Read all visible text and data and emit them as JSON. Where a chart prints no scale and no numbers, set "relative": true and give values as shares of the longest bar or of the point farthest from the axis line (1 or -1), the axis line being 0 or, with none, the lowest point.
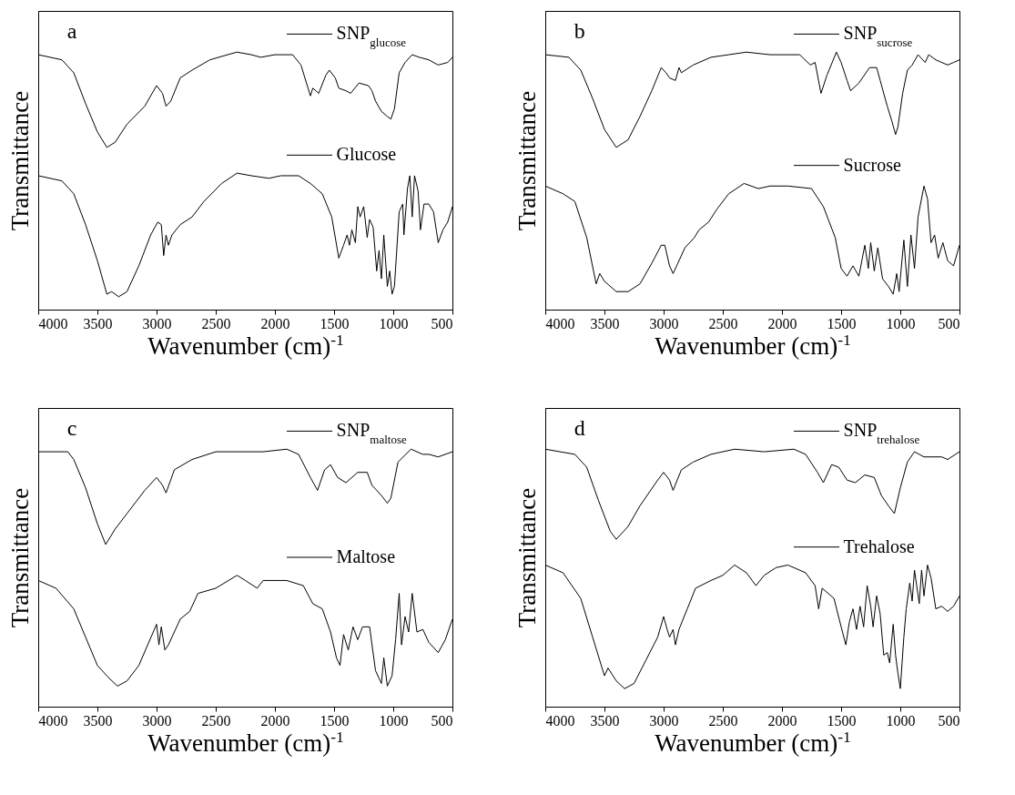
{
  "chart_data": [
    {
      "type": "line",
      "relative": true,
      "xlabel": "Wavenumber (cm)$^{-1}$",
      "ylabel": "Transmittance",
      "xlim": [
        4000,
        500
      ],
      "xticks": [
        4000,
        3500,
        3000,
        2500,
        2000,
        1500,
        1000,
        500
      ],
      "annotations": [
        "a"
      ],
      "legend": "top right",
      "series": [
        {
          "name": "SNP$_{glucose}$",
          "color": "#000000",
          "x": [
            4000,
            3800,
            3700,
            3600,
            3500,
            3420,
            3350,
            3250,
            3100,
            3000,
            2950,
            2920,
            2880,
            2800,
            2700,
            2550,
            2400,
            2320,
            2200,
            2120,
            2000,
            1850,
            1780,
            1720,
            1700,
            1680,
            1630,
            1570,
            1540,
            1490,
            1460,
            1400,
            1360,
            1290,
            1210,
            1180,
            1150,
            1100,
            1050,
            1020,
            990,
            950,
            900,
            840,
            780,
            700,
            620,
            540,
            500
          ],
          "values": [
            0.99,
            0.97,
            0.92,
            0.8,
            0.69,
            0.63,
            0.65,
            0.72,
            0.79,
            0.87,
            0.84,
            0.79,
            0.81,
            0.9,
            0.93,
            0.97,
            0.99,
            1,
            0.99,
            0.98,
            0.99,
            0.99,
            0.95,
            0.86,
            0.83,
            0.86,
            0.84,
            0.91,
            0.93,
            0.9,
            0.86,
            0.85,
            0.84,
            0.88,
            0.87,
            0.85,
            0.81,
            0.77,
            0.75,
            0.74,
            0.78,
            0.92,
            0.96,
            0.99,
            0.98,
            0.97,
            0.95,
            0.96,
            0.98
          ]
        },
        {
          "name": "Glucose",
          "color": "#000000",
          "x": [
            4000,
            3800,
            3700,
            3600,
            3500,
            3420,
            3380,
            3320,
            3250,
            3150,
            3050,
            2990,
            2960,
            2940,
            2920,
            2900,
            2870,
            2800,
            2700,
            2600,
            2450,
            2320,
            2200,
            2050,
            1950,
            1800,
            1700,
            1600,
            1520,
            1460,
            1420,
            1390,
            1370,
            1350,
            1320,
            1300,
            1280,
            1250,
            1220,
            1200,
            1170,
            1140,
            1120,
            1100,
            1080,
            1050,
            1030,
            1010,
            990,
            950,
            920,
            910,
            880,
            860,
            840,
            820,
            790,
            770,
            740,
            700,
            660,
            620,
            580,
            540,
            500
          ],
          "values": [
            0.52,
            0.5,
            0.45,
            0.33,
            0.19,
            0.06,
            0.07,
            0.05,
            0.07,
            0.17,
            0.29,
            0.34,
            0.33,
            0.21,
            0.29,
            0.25,
            0.29,
            0.33,
            0.36,
            0.42,
            0.49,
            0.53,
            0.52,
            0.51,
            0.52,
            0.52,
            0.49,
            0.45,
            0.36,
            0.2,
            0.25,
            0.29,
            0.25,
            0.31,
            0.26,
            0.4,
            0.36,
            0.4,
            0.28,
            0.35,
            0.32,
            0.15,
            0.23,
            0.12,
            0.29,
            0.09,
            0.15,
            0.06,
            0.09,
            0.38,
            0.41,
            0.29,
            0.47,
            0.52,
            0.36,
            0.52,
            0.46,
            0.31,
            0.41,
            0.41,
            0.38,
            0.26,
            0.31,
            0.34,
            0.4
          ]
        }
      ]
    },
    {
      "type": "line",
      "relative": true,
      "xlabel": "Wavenumber (cm)$^{-1}$",
      "ylabel": "Transmittance",
      "xlim": [
        4000,
        500
      ],
      "xticks": [
        4000,
        3500,
        3000,
        2500,
        2000,
        1500,
        1000,
        500
      ],
      "annotations": [
        "b"
      ],
      "legend": "top right",
      "series": [
        {
          "name": "SNP$_{sucrose}$",
          "color": "#000000",
          "x": [
            4000,
            3800,
            3700,
            3600,
            3500,
            3400,
            3300,
            3200,
            3100,
            3020,
            2980,
            2950,
            2900,
            2870,
            2850,
            2750,
            2600,
            2450,
            2300,
            2100,
            1850,
            1760,
            1720,
            1670,
            1620,
            1540,
            1500,
            1450,
            1420,
            1350,
            1260,
            1200,
            1170,
            1110,
            1070,
            1040,
            1020,
            980,
            940,
            900,
            850,
            790,
            760,
            700,
            600,
            550,
            500
          ],
          "values": [
            0.99,
            0.98,
            0.93,
            0.82,
            0.7,
            0.63,
            0.66,
            0.75,
            0.85,
            0.94,
            0.92,
            0.9,
            0.89,
            0.94,
            0.92,
            0.95,
            0.98,
            0.99,
            1,
            0.99,
            0.99,
            0.95,
            0.96,
            0.84,
            0.91,
            1,
            0.96,
            0.89,
            0.85,
            0.88,
            0.94,
            0.94,
            0.89,
            0.79,
            0.73,
            0.68,
            0.71,
            0.84,
            0.93,
            0.95,
            0.99,
            0.96,
            0.99,
            0.97,
            0.95,
            0.96,
            0.97
          ]
        },
        {
          "name": "Sucrose",
          "color": "#000000",
          "x": [
            4000,
            3850,
            3750,
            3650,
            3570,
            3540,
            3500,
            3400,
            3300,
            3200,
            3100,
            3020,
            2990,
            2950,
            2920,
            2880,
            2820,
            2740,
            2700,
            2620,
            2550,
            2450,
            2320,
            2200,
            2100,
            1950,
            1750,
            1650,
            1550,
            1500,
            1450,
            1400,
            1350,
            1300,
            1270,
            1250,
            1220,
            1190,
            1150,
            1100,
            1060,
            1030,
            1010,
            970,
            940,
            910,
            880,
            850,
            800,
            770,
            740,
            710,
            680,
            640,
            600,
            550,
            500
          ],
          "values": [
            0.48,
            0.45,
            0.42,
            0.28,
            0.1,
            0.14,
            0.11,
            0.07,
            0.07,
            0.1,
            0.18,
            0.25,
            0.25,
            0.17,
            0.14,
            0.18,
            0.24,
            0.28,
            0.31,
            0.34,
            0.39,
            0.45,
            0.49,
            0.47,
            0.48,
            0.48,
            0.47,
            0.4,
            0.28,
            0.16,
            0.13,
            0.17,
            0.13,
            0.25,
            0.16,
            0.26,
            0.15,
            0.24,
            0.12,
            0.09,
            0.06,
            0.14,
            0.07,
            0.27,
            0.09,
            0.29,
            0.16,
            0.36,
            0.48,
            0.43,
            0.26,
            0.29,
            0.2,
            0.26,
            0.19,
            0.17,
            0.25
          ]
        }
      ]
    },
    {
      "type": "line",
      "relative": true,
      "xlabel": "Wavenumber (cm)$^{-1}$",
      "ylabel": "Transmittance",
      "xlim": [
        4000,
        500
      ],
      "xticks": [
        4000,
        3500,
        3000,
        2500,
        2000,
        1500,
        1000,
        500
      ],
      "annotations": [
        "c"
      ],
      "legend": "top right",
      "series": [
        {
          "name": "SNP$_{maltose}$",
          "color": "#000000",
          "x": [
            4000,
            3750,
            3700,
            3600,
            3500,
            3430,
            3350,
            3250,
            3100,
            3000,
            2950,
            2920,
            2850,
            2700,
            2500,
            2300,
            2100,
            1900,
            1800,
            1700,
            1640,
            1580,
            1530,
            1470,
            1400,
            1300,
            1220,
            1180,
            1100,
            1050,
            1020,
            960,
            850,
            750,
            700,
            620,
            500
          ],
          "values": [
            0.99,
            0.99,
            0.96,
            0.85,
            0.71,
            0.63,
            0.69,
            0.75,
            0.84,
            0.89,
            0.86,
            0.83,
            0.92,
            0.96,
            0.99,
            0.99,
            0.99,
            1,
            0.98,
            0.89,
            0.84,
            0.92,
            0.94,
            0.89,
            0.87,
            0.91,
            0.91,
            0.86,
            0.82,
            0.79,
            0.81,
            0.95,
            1,
            0.98,
            0.98,
            0.97,
            0.99
          ]
        },
        {
          "name": "Maltose",
          "color": "#000000",
          "x": [
            4000,
            3850,
            3700,
            3600,
            3500,
            3400,
            3330,
            3250,
            3150,
            3000,
            2980,
            2960,
            2930,
            2900,
            2800,
            2720,
            2650,
            2500,
            2320,
            2250,
            2150,
            2100,
            1900,
            1760,
            1680,
            1600,
            1530,
            1480,
            1450,
            1420,
            1380,
            1340,
            1300,
            1260,
            1200,
            1150,
            1100,
            1080,
            1050,
            1010,
            980,
            950,
            930,
            900,
            870,
            840,
            800,
            750,
            700,
            620,
            560,
            500
          ],
          "values": [
            0.49,
            0.46,
            0.38,
            0.27,
            0.16,
            0.11,
            0.08,
            0.1,
            0.16,
            0.32,
            0.24,
            0.31,
            0.22,
            0.24,
            0.34,
            0.37,
            0.44,
            0.46,
            0.51,
            0.49,
            0.46,
            0.49,
            0.49,
            0.47,
            0.4,
            0.38,
            0.29,
            0.19,
            0.16,
            0.28,
            0.22,
            0.31,
            0.26,
            0.31,
            0.31,
            0.14,
            0.09,
            0.19,
            0.08,
            0.12,
            0.26,
            0.44,
            0.24,
            0.35,
            0.29,
            0.44,
            0.29,
            0.3,
            0.25,
            0.21,
            0.26,
            0.34
          ]
        }
      ]
    },
    {
      "type": "line",
      "relative": true,
      "xlabel": "Wavenumber (cm)$^{-1}$",
      "ylabel": "Transmittance",
      "xlim": [
        4000,
        500
      ],
      "xticks": [
        4000,
        3500,
        3000,
        2500,
        2000,
        1500,
        1000,
        500
      ],
      "annotations": [
        "d"
      ],
      "legend": "top right",
      "series": [
        {
          "name": "SNP$_{trehalose}$",
          "color": "#000000",
          "x": [
            4000,
            3750,
            3650,
            3550,
            3450,
            3400,
            3300,
            3200,
            3050,
            3000,
            2950,
            2920,
            2850,
            2750,
            2600,
            2400,
            2150,
            1900,
            1800,
            1700,
            1650,
            1580,
            1520,
            1450,
            1380,
            1300,
            1220,
            1160,
            1100,
            1050,
            1000,
            940,
            880,
            800,
            650,
            600,
            500
          ],
          "values": [
            1,
            0.98,
            0.93,
            0.8,
            0.68,
            0.65,
            0.7,
            0.78,
            0.88,
            0.91,
            0.88,
            0.84,
            0.92,
            0.95,
            0.98,
            1,
            0.99,
            1,
            0.98,
            0.91,
            0.87,
            0.94,
            0.93,
            0.88,
            0.87,
            0.9,
            0.89,
            0.82,
            0.78,
            0.75,
            0.85,
            0.95,
            0.99,
            0.97,
            0.97,
            0.96,
            0.99
          ]
        },
        {
          "name": "Trehalose",
          "color": "#000000",
          "x": [
            4000,
            3850,
            3700,
            3600,
            3500,
            3470,
            3400,
            3330,
            3250,
            3150,
            3050,
            3000,
            2970,
            2950,
            2920,
            2900,
            2870,
            2800,
            2730,
            2600,
            2500,
            2400,
            2300,
            2220,
            2150,
            2050,
            1950,
            1800,
            1720,
            1690,
            1660,
            1560,
            1500,
            1460,
            1430,
            1400,
            1370,
            1340,
            1310,
            1280,
            1250,
            1230,
            1200,
            1170,
            1140,
            1110,
            1090,
            1060,
            1040,
            1020,
            1000,
            970,
            950,
            920,
            900,
            880,
            840,
            820,
            800,
            770,
            740,
            700,
            650,
            600,
            550,
            500
          ],
          "values": [
            0.55,
            0.52,
            0.42,
            0.27,
            0.12,
            0.15,
            0.1,
            0.07,
            0.09,
            0.18,
            0.27,
            0.35,
            0.3,
            0.27,
            0.3,
            0.24,
            0.3,
            0.38,
            0.46,
            0.49,
            0.51,
            0.55,
            0.52,
            0.47,
            0.51,
            0.54,
            0.55,
            0.52,
            0.47,
            0.38,
            0.46,
            0.42,
            0.31,
            0.24,
            0.33,
            0.38,
            0.3,
            0.39,
            0.31,
            0.47,
            0.39,
            0.31,
            0.43,
            0.36,
            0.2,
            0.21,
            0.17,
            0.32,
            0.2,
            0.13,
            0.07,
            0.27,
            0.38,
            0.48,
            0.41,
            0.53,
            0.4,
            0.53,
            0.43,
            0.55,
            0.5,
            0.38,
            0.39,
            0.37,
            0.39,
            0.43
          ]
        }
      ]
    }
  ]
}
